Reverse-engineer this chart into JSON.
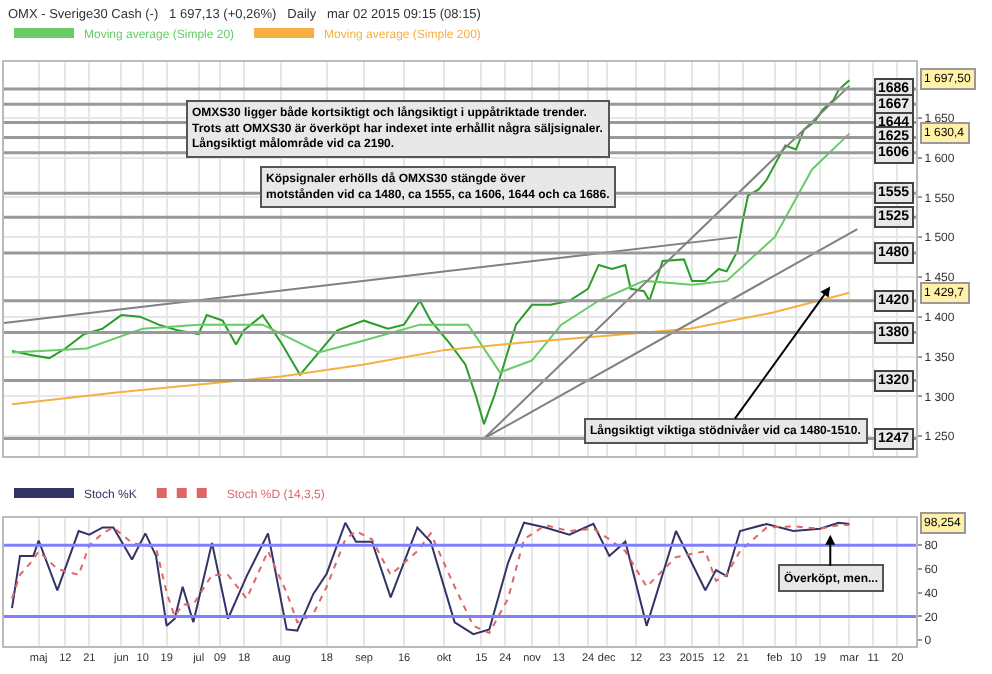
{
  "chart_data": [
    {
      "type": "line",
      "title": "OMX - Sverige30 Cash (-)   1 697,13 (+0,26%)   Daily   mar 02 2015 09:15 (08:15)",
      "legend": "top left",
      "grid": true,
      "tick_labels": "y",
      "xlim": [
        "2014-04-19",
        "2015-03-27"
      ],
      "xticks": [
        {
          "value": "2014-05-02",
          "label": null
        },
        {
          "value": "2014-05-12",
          "label": null
        },
        {
          "value": "2014-05-21",
          "label": null
        },
        {
          "value": "2014-06-02",
          "label": null
        },
        {
          "value": "2014-06-10",
          "label": null
        },
        {
          "value": "2014-06-19",
          "label": null
        },
        {
          "value": "2014-07-01",
          "label": null
        },
        {
          "value": "2014-07-09",
          "label": null
        },
        {
          "value": "2014-07-18",
          "label": null
        },
        {
          "value": "2014-08-01",
          "label": null
        },
        {
          "value": "2014-08-18",
          "label": null
        },
        {
          "value": "2014-09-01",
          "label": null
        },
        {
          "value": "2014-09-16",
          "label": null
        },
        {
          "value": "2014-10-01",
          "label": null
        },
        {
          "value": "2014-10-15",
          "label": null
        },
        {
          "value": "2014-10-24",
          "label": null
        },
        {
          "value": "2014-11-03",
          "label": null
        },
        {
          "value": "2014-11-13",
          "label": null
        },
        {
          "value": "2014-11-24",
          "label": null
        },
        {
          "value": "2014-12-01",
          "label": null
        },
        {
          "value": "2014-12-12",
          "label": null
        },
        {
          "value": "2014-12-23",
          "label": null
        },
        {
          "value": "2015-01-02",
          "label": null
        },
        {
          "value": "2015-01-12",
          "label": null
        },
        {
          "value": "2015-01-21",
          "label": null
        },
        {
          "value": "2015-02-02",
          "label": null
        },
        {
          "value": "2015-02-10",
          "label": null
        },
        {
          "value": "2015-02-19",
          "label": null
        },
        {
          "value": "2015-03-02",
          "label": null
        },
        {
          "value": "2015-03-11",
          "label": null
        },
        {
          "value": "2015-03-20",
          "label": null
        }
      ],
      "ylim": [
        1225,
        1720
      ],
      "yticks": [
        {
          "value": 1250,
          "label": "1 250"
        },
        {
          "value": 1300,
          "label": "1 300"
        },
        {
          "value": 1350,
          "label": "1 350"
        },
        {
          "value": 1400,
          "label": "1 400"
        },
        {
          "value": 1450,
          "label": "1 450"
        },
        {
          "value": 1500,
          "label": "1 500"
        },
        {
          "value": 1550,
          "label": "1 550"
        },
        {
          "value": 1600,
          "label": "1 600"
        },
        {
          "value": 1650,
          "label": "1 650"
        }
      ],
      "series": [
        {
          "color": "#2a9d2a",
          "x": [
            "2014-04-22",
            "2014-04-29",
            "2014-05-06",
            "2014-05-12",
            "2014-05-19",
            "2014-05-26",
            "2014-06-02",
            "2014-06-09",
            "2014-06-16",
            "2014-06-23",
            "2014-07-01",
            "2014-07-04",
            "2014-07-10",
            "2014-07-15",
            "2014-07-18",
            "2014-07-25",
            "2014-08-01",
            "2014-08-08",
            "2014-08-15",
            "2014-08-22",
            "2014-09-01",
            "2014-09-10",
            "2014-09-16",
            "2014-09-22",
            "2014-09-26",
            "2014-10-03",
            "2014-10-09",
            "2014-10-13",
            "2014-10-16",
            "2014-10-20",
            "2014-10-23",
            "2014-10-28",
            "2014-11-03",
            "2014-11-10",
            "2014-11-17",
            "2014-11-24",
            "2014-11-28",
            "2014-12-03",
            "2014-12-08",
            "2014-12-10",
            "2014-12-15",
            "2014-12-17",
            "2014-12-22",
            "2014-12-30",
            "2015-01-02",
            "2015-01-07",
            "2015-01-12",
            "2015-01-15",
            "2015-01-19",
            "2015-01-21",
            "2015-01-23",
            "2015-01-27",
            "2015-01-30",
            "2015-02-03",
            "2015-02-06",
            "2015-02-10",
            "2015-02-13",
            "2015-02-17",
            "2015-02-20",
            "2015-02-24",
            "2015-02-26",
            "2015-03-02"
          ],
          "values": [
            1357,
            1352,
            1348,
            1360,
            1378,
            1385,
            1402,
            1400,
            1390,
            1383,
            1378,
            1402,
            1395,
            1365,
            1383,
            1402,
            1367,
            1327,
            1355,
            1383,
            1395,
            1385,
            1390,
            1420,
            1395,
            1367,
            1340,
            1300,
            1265,
            1302,
            1335,
            1390,
            1415,
            1415,
            1420,
            1435,
            1465,
            1460,
            1465,
            1435,
            1432,
            1420,
            1470,
            1472,
            1445,
            1445,
            1460,
            1457,
            1482,
            1520,
            1552,
            1560,
            1572,
            1597,
            1615,
            1610,
            1635,
            1645,
            1660,
            1672,
            1685,
            1697
          ]
        },
        {
          "name": "Moving average (Simple 20)",
          "color": "#66cc66",
          "x": [
            "2014-04-22",
            "2014-05-20",
            "2014-06-10",
            "2014-07-01",
            "2014-07-25",
            "2014-08-15",
            "2014-09-01",
            "2014-09-22",
            "2014-10-10",
            "2014-10-22",
            "2014-11-03",
            "2014-11-14",
            "2014-11-28",
            "2014-12-15",
            "2015-01-02",
            "2015-01-15",
            "2015-02-02",
            "2015-02-16",
            "2015-03-02"
          ],
          "values": [
            1355,
            1360,
            1385,
            1390,
            1390,
            1355,
            1370,
            1390,
            1390,
            1330,
            1345,
            1390,
            1420,
            1445,
            1440,
            1445,
            1500,
            1585,
            1630
          ]
        },
        {
          "name": "Moving average (Simple 200)",
          "color": "#f5b041",
          "x": [
            "2014-04-22",
            "2014-06-01",
            "2014-08-01",
            "2014-09-01",
            "2014-10-01",
            "2014-11-01",
            "2014-12-01",
            "2015-01-01",
            "2015-02-01",
            "2015-03-02"
          ],
          "values": [
            1290,
            1305,
            1325,
            1340,
            1358,
            1368,
            1376,
            1385,
            1405,
            1430
          ]
        },
        {
          "color": "#808080",
          "x": [
            "2014-04-19",
            "2015-01-19"
          ],
          "values": [
            1392,
            1500
          ]
        },
        {
          "color": "#808080",
          "x": [
            "2014-10-16",
            "2015-03-02"
          ],
          "values": [
            1247,
            1690
          ]
        },
        {
          "color": "#808080",
          "x": [
            "2014-10-16",
            "2015-03-05"
          ],
          "values": [
            1247,
            1510
          ]
        }
      ],
      "ref_lines": [
        {
          "axis": "y",
          "value": 1686,
          "label": "1686",
          "color": "#999999"
        },
        {
          "axis": "y",
          "value": 1667,
          "label": "1667",
          "color": "#999999"
        },
        {
          "axis": "y",
          "value": 1644,
          "label": "1644",
          "color": "#999999"
        },
        {
          "axis": "y",
          "value": 1625,
          "label": "1625",
          "color": "#999999"
        },
        {
          "axis": "y",
          "value": 1606,
          "label": "1606",
          "color": "#999999"
        },
        {
          "axis": "y",
          "value": 1555,
          "label": "1555",
          "color": "#999999"
        },
        {
          "axis": "y",
          "value": 1525,
          "label": "1525",
          "color": "#999999"
        },
        {
          "axis": "y",
          "value": 1480,
          "label": "1480",
          "color": "#999999"
        },
        {
          "axis": "y",
          "value": 1420,
          "label": "1420",
          "color": "#999999"
        },
        {
          "axis": "y",
          "value": 1380,
          "label": "1380",
          "color": "#999999"
        },
        {
          "axis": "y",
          "value": 1320,
          "label": "1320",
          "color": "#999999"
        },
        {
          "axis": "y",
          "value": 1247,
          "label": "1247",
          "color": "#999999"
        }
      ],
      "annotations": [
        "OMXS30 ligger både kortsiktigt och långsiktigt i uppåtriktade trender.\nTrots att OMXS30 är överköpt har indexet inte erhållit några säljsignaler.\nLångsiktigt målområde vid ca 2190.",
        "Köpsignaler erhölls då OMXS30 stängde över\nmotstånden vid ca 1480, ca 1555, ca 1606, 1644 och ca 1686.",
        "Långsiktigt viktiga stödnivåer vid ca 1480-1510.",
        {
          "text": "1 697,50",
          "y": 1697.5
        },
        {
          "text": "1 630,4",
          "y": 1630.4
        },
        {
          "text": "1 429,7",
          "y": 1429.7
        }
      ]
    },
    {
      "type": "line",
      "legend": "top left",
      "grid": "x",
      "xlim": [
        "2014-04-19",
        "2015-03-27"
      ],
      "xticks": [
        {
          "value": "2014-05-02",
          "label": "maj"
        },
        {
          "value": "2014-05-12",
          "label": "12"
        },
        {
          "value": "2014-05-21",
          "label": "21"
        },
        {
          "value": "2014-06-02",
          "label": "jun"
        },
        {
          "value": "2014-06-10",
          "label": "10"
        },
        {
          "value": "2014-06-19",
          "label": "19"
        },
        {
          "value": "2014-07-01",
          "label": "jul"
        },
        {
          "value": "2014-07-09",
          "label": "09"
        },
        {
          "value": "2014-07-18",
          "label": "18"
        },
        {
          "value": "2014-08-01",
          "label": "aug"
        },
        {
          "value": "2014-08-18",
          "label": "18"
        },
        {
          "value": "2014-09-01",
          "label": "sep"
        },
        {
          "value": "2014-09-16",
          "label": "16"
        },
        {
          "value": "2014-10-01",
          "label": "okt"
        },
        {
          "value": "2014-10-15",
          "label": "15"
        },
        {
          "value": "2014-10-24",
          "label": "24"
        },
        {
          "value": "2014-11-03",
          "label": "nov"
        },
        {
          "value": "2014-11-13",
          "label": "13"
        },
        {
          "value": "2014-11-24",
          "label": "24"
        },
        {
          "value": "2014-12-01",
          "label": "dec"
        },
        {
          "value": "2014-12-12",
          "label": "12"
        },
        {
          "value": "2014-12-23",
          "label": "23"
        },
        {
          "value": "2015-01-02",
          "label": "2015"
        },
        {
          "value": "2015-01-12",
          "label": "12"
        },
        {
          "value": "2015-01-21",
          "label": "21"
        },
        {
          "value": "2015-02-02",
          "label": "feb"
        },
        {
          "value": "2015-02-10",
          "label": "10"
        },
        {
          "value": "2015-02-19",
          "label": "19"
        },
        {
          "value": "2015-03-02",
          "label": "mar"
        },
        {
          "value": "2015-03-11",
          "label": "11"
        },
        {
          "value": "2015-03-20",
          "label": "20"
        }
      ],
      "ylim": [
        -5,
        103
      ],
      "yticks": [
        0,
        20,
        40,
        60,
        80
      ],
      "series": [
        {
          "name": "Stoch %K",
          "color": "#333366",
          "x": [
            "2014-04-22",
            "2014-04-25",
            "2014-04-30",
            "2014-05-02",
            "2014-05-09",
            "2014-05-17",
            "2014-05-21",
            "2014-05-26",
            "2014-05-30",
            "2014-06-06",
            "2014-06-11",
            "2014-06-15",
            "2014-06-19",
            "2014-06-22",
            "2014-06-25",
            "2014-06-29",
            "2014-07-06",
            "2014-07-12",
            "2014-07-19",
            "2014-07-27",
            "2014-08-03",
            "2014-08-07",
            "2014-08-13",
            "2014-08-18",
            "2014-08-25",
            "2014-08-29",
            "2014-09-04",
            "2014-09-11",
            "2014-09-21",
            "2014-09-26",
            "2014-10-05",
            "2014-10-12",
            "2014-10-18",
            "2014-10-25",
            "2014-10-31",
            "2014-11-08",
            "2014-11-17",
            "2014-11-26",
            "2014-12-02",
            "2014-12-08",
            "2014-12-16",
            "2014-12-27",
            "2015-01-07",
            "2015-01-11",
            "2015-01-15",
            "2015-01-20",
            "2015-01-30",
            "2015-02-09",
            "2015-02-19",
            "2015-02-26",
            "2015-03-02"
          ],
          "values": [
            27,
            71,
            71,
            84,
            42,
            92,
            89,
            95,
            95,
            68,
            90,
            71,
            12,
            18,
            45,
            15,
            82,
            18,
            54,
            90,
            9,
            8,
            39,
            56,
            99,
            83,
            83,
            36,
            95,
            83,
            15,
            5,
            9,
            65,
            99,
            95,
            89,
            98,
            71,
            83,
            12,
            92,
            42,
            59,
            54,
            92,
            98,
            92,
            94,
            99,
            98
          ]
        },
        {
          "name": "Stoch %D (14,3,5)",
          "color": "#e06666",
          "line_style": "dotted",
          "x": [
            "2014-04-22",
            "2014-04-25",
            "2014-04-30",
            "2014-05-02",
            "2014-05-09",
            "2014-05-17",
            "2014-05-21",
            "2014-05-26",
            "2014-05-30",
            "2014-06-06",
            "2014-06-11",
            "2014-06-15",
            "2014-06-19",
            "2014-06-22",
            "2014-06-25",
            "2014-06-29",
            "2014-07-06",
            "2014-07-12",
            "2014-07-19",
            "2014-07-27",
            "2014-08-03",
            "2014-08-07",
            "2014-08-13",
            "2014-08-18",
            "2014-08-25",
            "2014-08-29",
            "2014-09-04",
            "2014-09-11",
            "2014-09-21",
            "2014-09-26",
            "2014-10-05",
            "2014-10-12",
            "2014-10-18",
            "2014-10-25",
            "2014-10-31",
            "2014-11-08",
            "2014-11-17",
            "2014-11-26",
            "2014-12-02",
            "2014-12-08",
            "2014-12-16",
            "2014-12-27",
            "2015-01-07",
            "2015-01-11",
            "2015-01-15",
            "2015-01-20",
            "2015-01-30",
            "2015-02-09",
            "2015-02-19",
            "2015-02-26",
            "2015-03-02"
          ],
          "values": [
            35,
            55,
            68,
            75,
            60,
            55,
            80,
            90,
            95,
            82,
            80,
            78,
            40,
            20,
            30,
            30,
            55,
            55,
            35,
            75,
            40,
            15,
            22,
            45,
            85,
            92,
            85,
            55,
            75,
            90,
            45,
            12,
            6,
            35,
            85,
            97,
            92,
            94,
            85,
            75,
            45,
            70,
            75,
            50,
            55,
            75,
            95,
            96,
            94,
            97,
            97
          ]
        }
      ],
      "ref_lines": [
        {
          "axis": "y",
          "value": 80,
          "color": "#8080ff"
        },
        {
          "axis": "y",
          "value": 20,
          "color": "#8080ff"
        }
      ],
      "annotations": [
        "Överköpt, men...",
        {
          "text": "98,254",
          "y": 98.254
        }
      ]
    }
  ]
}
